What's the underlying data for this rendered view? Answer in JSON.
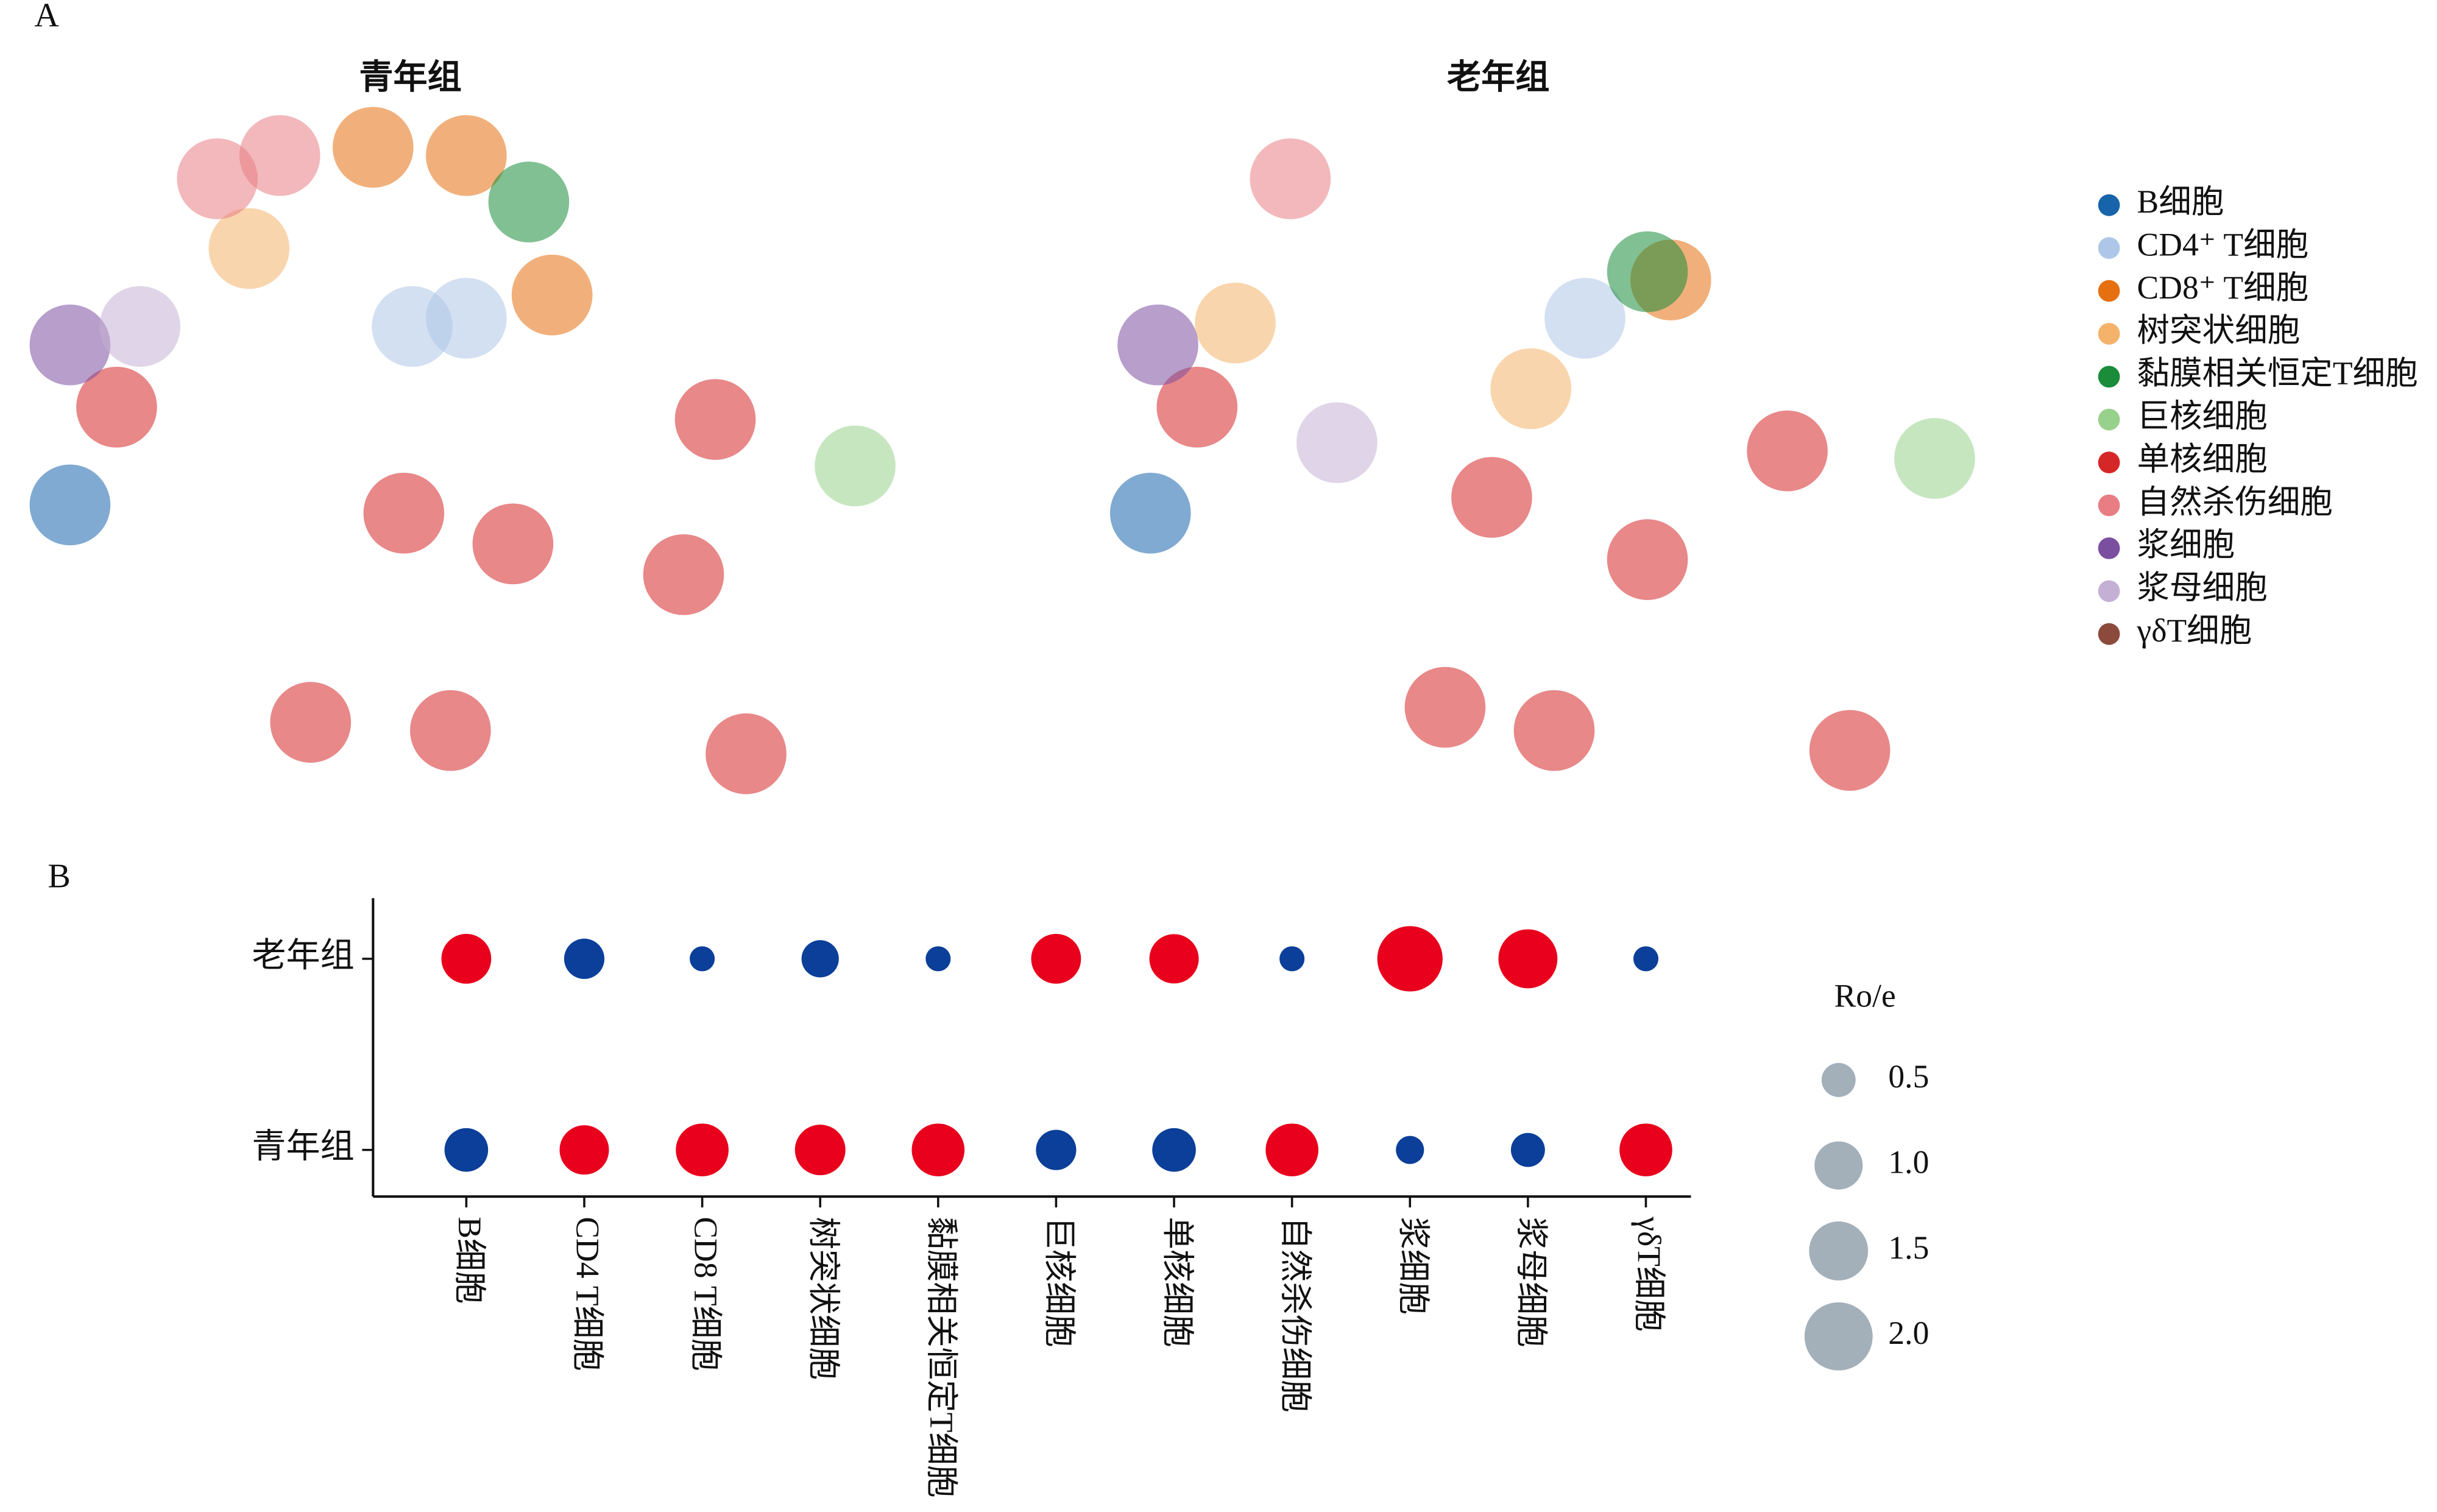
{
  "chart_data": [
    {
      "type": "scatter",
      "panel_label": "A",
      "panel_titles": [
        "青年组",
        "老年组"
      ],
      "xlim": [
        0,
        100
      ],
      "ylim": [
        0,
        100
      ],
      "series": [
        {
          "name": "B细胞",
          "color": "#1764ab",
          "x": [
            [
              7.5
            ],
            [
              6.7
            ]
          ],
          "y": [
            [
              43.2
            ],
            [
              42
            ]
          ]
        },
        {
          "name": "CD4⁺ T细胞",
          "color": "#aec7e8",
          "x": [
            [
              50,
              44.2
            ],
            [
              53.3
            ]
          ],
          "y": [
            [
              70.5,
              69.3
            ],
            [
              70.5
            ]
          ]
        },
        {
          "name": "CD8⁺ T细胞",
          "color": "#e6700f",
          "x": [
            [
              40,
              50,
              59.2
            ],
            [
              62.5
            ]
          ],
          "y": [
            [
              95.5,
              94.3,
              73.9
            ],
            [
              76.1
            ]
          ]
        },
        {
          "name": "树突状细胞",
          "color": "#f4b26a",
          "x": [
            [
              26.7
            ],
            [
              47.5,
              15.8
            ]
          ],
          "y": [
            [
              80.7
            ],
            [
              60.2,
              69.8
            ]
          ]
        },
        {
          "name": "黏膜相关恒定T细胞",
          "color": "#1a8c3a",
          "x": [
            [
              56.7
            ],
            [
              60
            ]
          ],
          "y": [
            [
              87.5
            ],
            [
              77.3
            ]
          ]
        },
        {
          "name": "巨核细胞",
          "color": "#98d18c",
          "x": [
            [
              91.7
            ],
            [
              90.8
            ]
          ],
          "y": [
            [
              48.9
            ],
            [
              50
            ]
          ]
        },
        {
          "name": "单核细胞",
          "color": "#d62728",
          "x": [
            [
              43.3,
              55,
              73.3,
              33.3,
              48.3,
              76.7,
              12.5,
              80
            ],
            [
              43.3,
              60,
              38.3,
              50,
              75,
              11.7,
              81.7
            ]
          ],
          "y": [
            [
              42,
              37.5,
              33,
              11.4,
              10.2,
              55.7,
              57.5,
              6.8
            ],
            [
              44.3,
              35.2,
              13.6,
              10.2,
              51.1,
              57.5,
              7.3
            ]
          ]
        },
        {
          "name": "自然杀伤细胞",
          "color": "#e87e83",
          "x": [
            [
              23.3,
              30
            ],
            [
              21.7
            ]
          ],
          "y": [
            [
              90.9,
              94.3
            ],
            [
              90.9
            ]
          ]
        },
        {
          "name": "浆细胞",
          "color": "#7b4fa0",
          "x": [
            [
              7.5
            ],
            [
              7.5
            ]
          ],
          "y": [
            [
              66.6
            ],
            [
              66.6
            ]
          ]
        },
        {
          "name": "浆母细胞",
          "color": "#c5b0d5",
          "x": [
            [
              15
            ],
            [
              26.7
            ]
          ],
          "y": [
            [
              69.3
            ],
            [
              52.3
            ]
          ]
        },
        {
          "name": "γδT细胞",
          "color": "#8c4a3c",
          "x": [
            [],
            []
          ],
          "y": [
            [],
            []
          ]
        }
      ]
    },
    {
      "type": "dot",
      "panel_label": "B",
      "categories": [
        "B细胞",
        "CD4 T细胞",
        "CD8 T细胞",
        "树突状细胞",
        "黏膜相关恒定T细胞",
        "巨核细胞",
        "单核细胞",
        "自然杀伤细胞",
        "浆细胞",
        "浆母细胞",
        "γδT细胞"
      ],
      "series": [
        {
          "name": "老年组",
          "values": [
            1.07,
            0.7,
            0.27,
            0.6,
            0.27,
            1.07,
            1.05,
            0.27,
            1.84,
            1.5,
            0.27
          ],
          "colors": [
            "#e8001c",
            "#0b3f99",
            "#0b3f99",
            "#0b3f99",
            "#0b3f99",
            "#e8001c",
            "#e8001c",
            "#0b3f99",
            "#e8001c",
            "#e8001c",
            "#0b3f99"
          ]
        },
        {
          "name": "青年组",
          "values": [
            0.82,
            1.05,
            1.2,
            1.1,
            1.2,
            0.7,
            0.82,
            1.2,
            0.34,
            0.5,
            1.2
          ],
          "colors": [
            "#0b3f99",
            "#e8001c",
            "#e8001c",
            "#e8001c",
            "#e8001c",
            "#0b3f99",
            "#0b3f99",
            "#e8001c",
            "#0b3f99",
            "#0b3f99",
            "#e8001c"
          ]
        }
      ],
      "size_legend": {
        "title": "Ro/e",
        "color": "#a3b0ba",
        "values": [
          0.5,
          {
            "value": 1,
            "label": "1.0"
          },
          1.5,
          {
            "value": 2,
            "label": "2.0"
          }
        ]
      }
    }
  ]
}
